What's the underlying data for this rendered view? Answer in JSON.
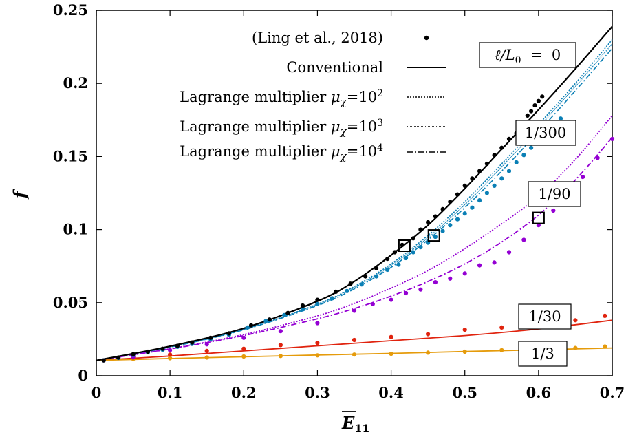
{
  "chart_data": {
    "type": "line",
    "xlabel": "E",
    "xlabel_sub": "11",
    "ylabel": "f",
    "xlim": [
      0,
      0.7
    ],
    "ylim": [
      0,
      0.25
    ],
    "xticks": [
      0,
      0.1,
      0.2,
      0.3,
      0.4,
      0.5,
      0.6,
      0.7
    ],
    "xtick_labels": [
      "0",
      "0.1",
      "0.2",
      "0.3",
      "0.4",
      "0.5",
      "0.6",
      "0.7"
    ],
    "yticks": [
      0,
      0.05,
      0.1,
      0.15,
      0.2,
      0.25
    ],
    "ytick_labels": [
      "0",
      "0.05",
      "0.1",
      "0.15",
      "0.2",
      "0.25"
    ],
    "grid": false,
    "legend_position": "top-center",
    "legend": [
      {
        "label": "(Ling et al., 2018)",
        "style": "dots"
      },
      {
        "label": "Conventional",
        "style": "solid"
      },
      {
        "label_prefix": "Lagrange multiplier ",
        "label_mu": "μ",
        "label_mu_sub": "χ",
        "label_eq": "=10",
        "label_exp": "2",
        "style": "dotted"
      },
      {
        "label_prefix": "Lagrange multiplier ",
        "label_mu": "μ",
        "label_mu_sub": "χ",
        "label_eq": "=10",
        "label_exp": "3",
        "style": "densedotted"
      },
      {
        "label_prefix": "Lagrange multiplier ",
        "label_mu": "μ",
        "label_mu_sub": "χ",
        "label_eq": "=10",
        "label_exp": "4",
        "style": "dashdot"
      }
    ],
    "annotations": {
      "l0": {
        "pre": "ℓ/",
        "L": "L",
        "Lsub": "0",
        "post": "  =  0"
      },
      "l300": "1/300",
      "l90": "1/90",
      "l30": "1/30",
      "l3": "1/3"
    },
    "colors": {
      "black": "#000000",
      "blue": "#0a7fb5",
      "purple": "#9400d3",
      "red": "#e0230e",
      "orange": "#e59b0b"
    },
    "curves": {
      "conventional": {
        "x": [
          0,
          0.1,
          0.2,
          0.3,
          0.35,
          0.4,
          0.45,
          0.5,
          0.55,
          0.6,
          0.65,
          0.7
        ],
        "y": [
          0.0105,
          0.0202,
          0.0325,
          0.051,
          0.0645,
          0.0825,
          0.103,
          0.128,
          0.155,
          0.182,
          0.21,
          0.239
        ]
      },
      "blue_mu2": {
        "x": [
          0,
          0.1,
          0.2,
          0.3,
          0.35,
          0.4,
          0.45,
          0.5,
          0.55,
          0.6,
          0.65,
          0.7
        ],
        "y": [
          0.0105,
          0.0198,
          0.0318,
          0.049,
          0.061,
          0.0765,
          0.096,
          0.119,
          0.145,
          0.172,
          0.2,
          0.23
        ]
      },
      "blue_mu3": {
        "x": [
          0,
          0.1,
          0.2,
          0.3,
          0.35,
          0.4,
          0.45,
          0.5,
          0.55,
          0.6,
          0.65,
          0.7
        ],
        "y": [
          0.0105,
          0.0197,
          0.0316,
          0.0486,
          0.0603,
          0.0755,
          0.0945,
          0.117,
          0.143,
          0.17,
          0.198,
          0.227
        ]
      },
      "blue_mu4": {
        "x": [
          0,
          0.1,
          0.2,
          0.3,
          0.35,
          0.4,
          0.45,
          0.5,
          0.55,
          0.6,
          0.65,
          0.7
        ],
        "y": [
          0.0105,
          0.0196,
          0.0314,
          0.048,
          0.0594,
          0.0742,
          0.093,
          0.115,
          0.14,
          0.167,
          0.195,
          0.224
        ]
      },
      "purple_mu2": {
        "x": [
          0,
          0.1,
          0.2,
          0.3,
          0.35,
          0.4,
          0.45,
          0.5,
          0.55,
          0.6,
          0.65,
          0.7
        ],
        "y": [
          0.0105,
          0.0185,
          0.0282,
          0.041,
          0.0495,
          0.06,
          0.072,
          0.087,
          0.104,
          0.123,
          0.148,
          0.178
        ]
      },
      "purple_mu4": {
        "x": [
          0,
          0.1,
          0.2,
          0.3,
          0.35,
          0.4,
          0.45,
          0.5,
          0.55,
          0.6,
          0.65,
          0.7
        ],
        "y": [
          0.0105,
          0.0183,
          0.0275,
          0.039,
          0.046,
          0.0545,
          0.0645,
          0.0765,
          0.0915,
          0.11,
          0.134,
          0.163
        ]
      },
      "red": {
        "x": [
          0,
          0.1,
          0.2,
          0.3,
          0.4,
          0.5,
          0.6,
          0.7
        ],
        "y": [
          0.0105,
          0.0135,
          0.017,
          0.0205,
          0.024,
          0.0275,
          0.032,
          0.038
        ]
      },
      "orange": {
        "x": [
          0,
          0.1,
          0.2,
          0.3,
          0.4,
          0.5,
          0.6,
          0.7
        ],
        "y": [
          0.0105,
          0.0118,
          0.013,
          0.0142,
          0.0153,
          0.0166,
          0.0178,
          0.019
        ]
      }
    },
    "points": {
      "black": {
        "x": [
          0.01,
          0.03,
          0.05,
          0.07,
          0.09,
          0.11,
          0.13,
          0.155,
          0.18,
          0.21,
          0.235,
          0.26,
          0.28,
          0.3,
          0.325,
          0.345,
          0.365,
          0.38,
          0.395,
          0.405,
          0.415,
          0.43,
          0.44,
          0.45,
          0.46,
          0.47,
          0.48,
          0.49,
          0.5,
          0.51,
          0.52,
          0.53,
          0.54,
          0.55,
          0.56,
          0.57,
          0.58,
          0.585,
          0.59,
          0.595,
          0.6,
          0.605
        ],
        "y": [
          0.0105,
          0.0125,
          0.0148,
          0.0165,
          0.0185,
          0.0205,
          0.0228,
          0.026,
          0.029,
          0.0345,
          0.0385,
          0.043,
          0.048,
          0.052,
          0.0575,
          0.063,
          0.068,
          0.0735,
          0.08,
          0.0845,
          0.0895,
          0.094,
          0.1,
          0.105,
          0.109,
          0.114,
          0.119,
          0.124,
          0.13,
          0.135,
          0.14,
          0.145,
          0.151,
          0.156,
          0.162,
          0.166,
          0.172,
          0.178,
          0.181,
          0.185,
          0.188,
          0.191
        ]
      },
      "blue": {
        "x": [
          0.01,
          0.03,
          0.05,
          0.07,
          0.09,
          0.11,
          0.13,
          0.155,
          0.18,
          0.205,
          0.23,
          0.255,
          0.28,
          0.3,
          0.32,
          0.34,
          0.36,
          0.38,
          0.395,
          0.41,
          0.42,
          0.43,
          0.44,
          0.45,
          0.46,
          0.47,
          0.48,
          0.49,
          0.5,
          0.51,
          0.52,
          0.53,
          0.54,
          0.55,
          0.56,
          0.57,
          0.58,
          0.59,
          0.6,
          0.61,
          0.62,
          0.63
        ],
        "y": [
          0.0105,
          0.0122,
          0.0142,
          0.016,
          0.0178,
          0.0198,
          0.0218,
          0.025,
          0.028,
          0.033,
          0.0375,
          0.0415,
          0.0455,
          0.049,
          0.053,
          0.058,
          0.0625,
          0.068,
          0.0725,
          0.076,
          0.0805,
          0.0845,
          0.088,
          0.091,
          0.095,
          0.099,
          0.103,
          0.107,
          0.111,
          0.115,
          0.12,
          0.125,
          0.13,
          0.135,
          0.14,
          0.146,
          0.151,
          0.156,
          0.16,
          0.165,
          0.17,
          0.176
        ]
      },
      "purple": {
        "x": [
          0.01,
          0.05,
          0.1,
          0.15,
          0.2,
          0.25,
          0.3,
          0.35,
          0.375,
          0.4,
          0.42,
          0.44,
          0.46,
          0.48,
          0.5,
          0.52,
          0.54,
          0.56,
          0.58,
          0.6,
          0.62,
          0.64,
          0.66,
          0.68,
          0.7
        ],
        "y": [
          0.0105,
          0.013,
          0.0175,
          0.0215,
          0.026,
          0.0305,
          0.036,
          0.0445,
          0.049,
          0.052,
          0.0565,
          0.059,
          0.064,
          0.0665,
          0.07,
          0.0755,
          0.0775,
          0.0845,
          0.093,
          0.103,
          0.113,
          0.124,
          0.136,
          0.149,
          0.162
        ]
      },
      "red": {
        "x": [
          0.05,
          0.1,
          0.15,
          0.2,
          0.25,
          0.3,
          0.35,
          0.4,
          0.45,
          0.5,
          0.55,
          0.6,
          0.65,
          0.69
        ],
        "y": [
          0.0125,
          0.0145,
          0.017,
          0.0185,
          0.021,
          0.0225,
          0.0245,
          0.0265,
          0.0285,
          0.0315,
          0.033,
          0.035,
          0.038,
          0.041
        ]
      },
      "orange": {
        "x": [
          0.05,
          0.1,
          0.15,
          0.2,
          0.25,
          0.3,
          0.35,
          0.4,
          0.45,
          0.5,
          0.55,
          0.6,
          0.65,
          0.69
        ],
        "y": [
          0.0115,
          0.012,
          0.0125,
          0.0132,
          0.0135,
          0.014,
          0.0145,
          0.015,
          0.0158,
          0.0165,
          0.0175,
          0.018,
          0.019,
          0.02
        ]
      }
    },
    "markers": [
      {
        "x": 0.418,
        "y": 0.089
      },
      {
        "x": 0.458,
        "y": 0.096
      },
      {
        "x": 0.6,
        "y": 0.108
      }
    ]
  }
}
